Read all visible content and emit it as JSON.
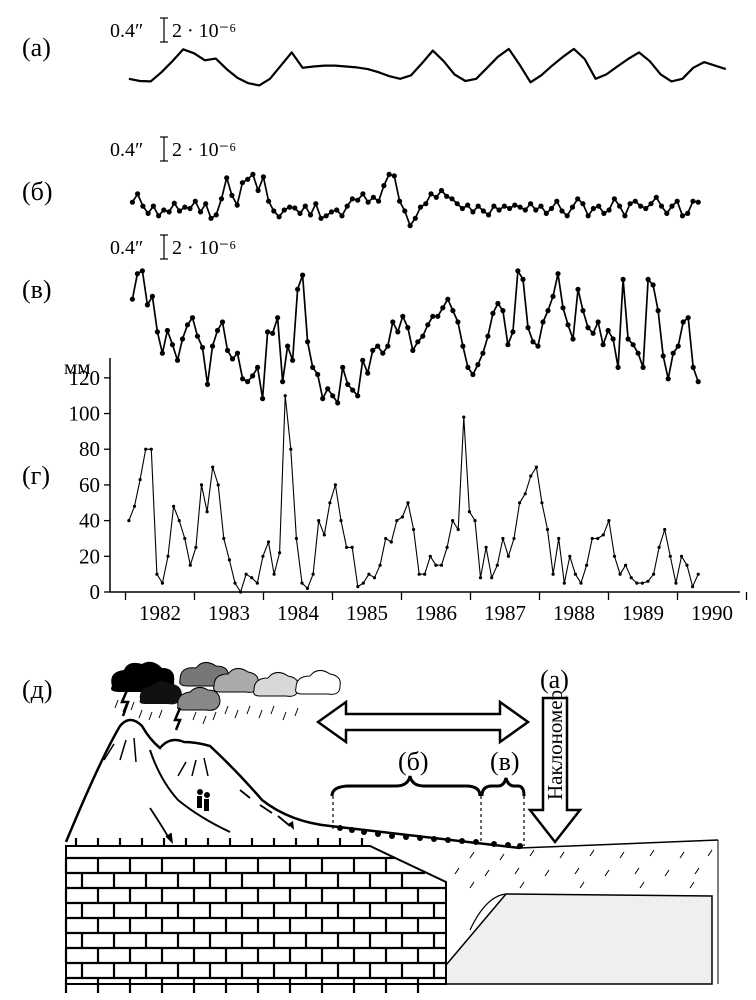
{
  "chart_data": [
    {
      "type": "line",
      "panel": "(а)",
      "scale_label": "0.4″",
      "scale_value": "2 · 10⁻⁶",
      "x_start": 1981.55,
      "x_end": 1990.2,
      "values": [
        0.3,
        0.25,
        0.24,
        0.45,
        0.7,
        0.97,
        0.88,
        0.72,
        0.76,
        0.52,
        0.32,
        0.2,
        0.15,
        0.3,
        0.6,
        0.9,
        0.55,
        0.58,
        0.6,
        0.6,
        0.58,
        0.56,
        0.52,
        0.45,
        0.36,
        0.3,
        0.38,
        0.65,
        0.94,
        0.7,
        0.4,
        0.25,
        0.3,
        0.55,
        0.8,
        0.98,
        0.62,
        0.22,
        0.38,
        0.6,
        0.8,
        0.98,
        0.75,
        0.3,
        0.4,
        0.58,
        0.75,
        0.9,
        0.7,
        0.4,
        0.24,
        0.3,
        0.55,
        0.68,
        0.6,
        0.52
      ]
    },
    {
      "type": "line",
      "panel": "(б)",
      "scale_label": "0.4″",
      "scale_value": "2 · 10⁻⁶",
      "x_start": 1981.6,
      "x_end": 1989.8,
      "values": [
        0.38,
        0.55,
        0.3,
        0.15,
        0.3,
        0.1,
        0.22,
        0.18,
        0.36,
        0.2,
        0.28,
        0.25,
        0.4,
        0.18,
        0.35,
        0.05,
        0.12,
        0.45,
        0.88,
        0.52,
        0.32,
        0.78,
        0.85,
        0.95,
        0.62,
        0.9,
        0.4,
        0.2,
        0.08,
        0.22,
        0.28,
        0.26,
        0.15,
        0.3,
        0.12,
        0.35,
        0.05,
        0.1,
        0.18,
        0.22,
        0.1,
        0.3,
        0.45,
        0.42,
        0.55,
        0.38,
        0.48,
        0.4,
        0.72,
        0.95,
        0.92,
        0.4,
        0.2,
        -0.1,
        0.05,
        0.28,
        0.35,
        0.55,
        0.48,
        0.62,
        0.5,
        0.45,
        0.35,
        0.25,
        0.32,
        0.18,
        0.3,
        0.2,
        0.12,
        0.3,
        0.22,
        0.3,
        0.25,
        0.32,
        0.28,
        0.22,
        0.35,
        0.22,
        0.3,
        0.15,
        0.25,
        0.4,
        0.2,
        0.1,
        0.28,
        0.45,
        0.35,
        0.1,
        0.25,
        0.3,
        0.15,
        0.22,
        0.45,
        0.3,
        0.1,
        0.35,
        0.4,
        0.3,
        0.25,
        0.35,
        0.48,
        0.3,
        0.15,
        0.3,
        0.4,
        0.1,
        0.15,
        0.4,
        0.38
      ]
    },
    {
      "type": "line",
      "panel": "(в)",
      "scale_label": "0.4″",
      "scale_value": "2 · 10⁻⁶",
      "x_start": 1981.6,
      "x_end": 1989.8,
      "values": [
        0.78,
        0.96,
        0.98,
        0.74,
        0.8,
        0.55,
        0.4,
        0.56,
        0.46,
        0.35,
        0.5,
        0.6,
        0.65,
        0.52,
        0.44,
        0.18,
        0.45,
        0.56,
        0.62,
        0.42,
        0.36,
        0.4,
        0.22,
        0.2,
        0.24,
        0.3,
        0.08,
        0.55,
        0.54,
        0.65,
        0.2,
        0.45,
        0.35,
        0.85,
        0.95,
        0.48,
        0.3,
        0.25,
        0.08,
        0.15,
        0.1,
        0.05,
        0.3,
        0.18,
        0.14,
        0.1,
        0.35,
        0.26,
        0.42,
        0.45,
        0.4,
        0.45,
        0.62,
        0.55,
        0.66,
        0.58,
        0.42,
        0.48,
        0.52,
        0.6,
        0.66,
        0.66,
        0.72,
        0.78,
        0.7,
        0.62,
        0.45,
        0.3,
        0.25,
        0.32,
        0.4,
        0.52,
        0.68,
        0.75,
        0.7,
        0.46,
        0.55,
        0.98,
        0.92,
        0.58,
        0.48,
        0.45,
        0.62,
        0.7,
        0.8,
        0.96,
        0.72,
        0.6,
        0.5,
        0.85,
        0.7,
        0.58,
        0.54,
        0.62,
        0.46,
        0.56,
        0.5,
        0.3,
        0.92,
        0.5,
        0.46,
        0.4,
        0.3,
        0.92,
        0.88,
        0.7,
        0.38,
        0.22,
        0.4,
        0.45,
        0.62,
        0.65,
        0.3,
        0.2
      ]
    },
    {
      "type": "line",
      "panel": "(г)",
      "ylabel": "мм",
      "ylim": [
        0,
        130
      ],
      "yticks": [
        "0",
        "20",
        "40",
        "60",
        "80",
        "100",
        "120"
      ],
      "xticks": [
        "1982",
        "1983",
        "1984",
        "1985",
        "1986",
        "1987",
        "1988",
        "1989",
        "1990"
      ],
      "xlim": [
        1981.5,
        1990.5
      ],
      "x_start": 1981.55,
      "x_end": 1989.8,
      "values": [
        40,
        48,
        63,
        80,
        80,
        10,
        5,
        20,
        48,
        40,
        30,
        15,
        25,
        60,
        45,
        70,
        60,
        30,
        18,
        5,
        0,
        10,
        8,
        5,
        20,
        28,
        10,
        22,
        110,
        80,
        30,
        5,
        2,
        10,
        40,
        32,
        50,
        60,
        40,
        25,
        25,
        3,
        5,
        10,
        8,
        15,
        30,
        28,
        40,
        42,
        50,
        35,
        10,
        10,
        20,
        15,
        15,
        25,
        40,
        35,
        98,
        45,
        40,
        8,
        25,
        8,
        15,
        30,
        20,
        30,
        50,
        55,
        65,
        70,
        50,
        35,
        10,
        30,
        5,
        20,
        10,
        5,
        15,
        30,
        30,
        32,
        40,
        20,
        10,
        15,
        8,
        5,
        5,
        6,
        10,
        25,
        35,
        20,
        5,
        20,
        15,
        3,
        10
      ]
    }
  ],
  "diagram": {
    "panel_label": "(д)",
    "label_a": "(а)",
    "label_b": "(б)",
    "label_v": "(в)",
    "arrow_text": "Наклономер"
  }
}
